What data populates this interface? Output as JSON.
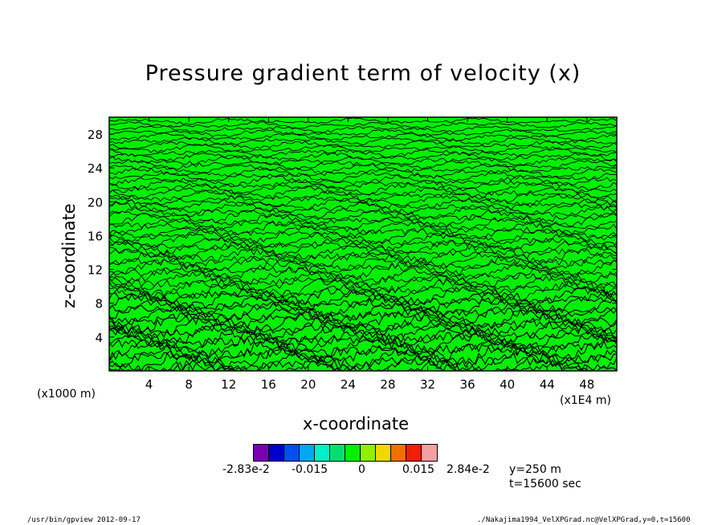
{
  "chart_data": {
    "type": "heatmap",
    "title": "Pressure gradient term of velocity (x)",
    "xlabel": "x-coordinate",
    "ylabel": "z-coordinate",
    "x_unit": "(x1E4 m)",
    "y_unit": "(x1000 m)",
    "xlim": [
      0,
      51
    ],
    "ylim": [
      0,
      30
    ],
    "x_ticks": [
      4,
      8,
      12,
      16,
      20,
      24,
      28,
      32,
      36,
      40,
      44,
      48
    ],
    "y_ticks": [
      4,
      8,
      12,
      16,
      20,
      24,
      28
    ],
    "colorbar": {
      "colors": [
        "#7a00b4",
        "#0000cc",
        "#0050f0",
        "#00a8f0",
        "#00f0c8",
        "#00e070",
        "#00f000",
        "#90f000",
        "#f0d800",
        "#f07000",
        "#f02000",
        "#f4a0a0"
      ],
      "labels": [
        "-2.83e-2",
        "-0.015",
        "0",
        "0.015",
        "2.84e-2"
      ]
    },
    "annotations": [
      "y=250 m",
      "t=15600 sec"
    ]
  },
  "footer": {
    "left": "/usr/bin/gpview   2012-09-17",
    "right": "./Nakajima1994_VelXPGrad.nc@VelXPGrad,y=0,t=15600"
  },
  "style": {
    "fill": "#00f000",
    "contour": "#000000"
  }
}
